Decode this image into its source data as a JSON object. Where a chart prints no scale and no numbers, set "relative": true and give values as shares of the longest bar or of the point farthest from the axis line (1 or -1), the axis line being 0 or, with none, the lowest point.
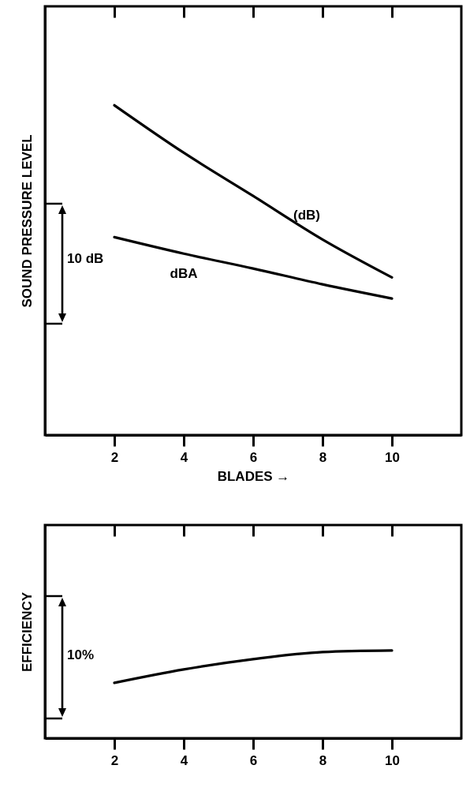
{
  "chart_data": [
    {
      "type": "line",
      "relative": true,
      "xlabel": "BLADES →",
      "ylabel": "SOUND PRESSURE LEVEL",
      "x": [
        2,
        4,
        6,
        8,
        10
      ],
      "xlim": [
        0,
        12
      ],
      "xticks": [
        2,
        4,
        6,
        8,
        10
      ],
      "tick_labels": "x",
      "legend": false,
      "grid": false,
      "annotations": [
        "10 dB"
      ],
      "series": [
        {
          "name": "(dB)",
          "color": "#000000",
          "values": [
            1,
            0.856,
            0.725,
            0.593,
            0.478
          ]
        },
        {
          "name": "dBA",
          "color": "#000000",
          "values": [
            0.6,
            0.55,
            0.505,
            0.457,
            0.414
          ]
        }
      ]
    },
    {
      "type": "line",
      "relative": true,
      "ylabel": "EFFICIENCY",
      "x": [
        2,
        4,
        6,
        8,
        10
      ],
      "xlim": [
        0,
        12
      ],
      "xticks": [
        2,
        4,
        6,
        8,
        10
      ],
      "tick_labels": "x",
      "legend": false,
      "grid": false,
      "annotations": [
        "10%"
      ],
      "series": [
        {
          "color": "#000000",
          "values": [
            0.631,
            0.784,
            0.901,
            0.982,
            1
          ]
        }
      ]
    }
  ]
}
